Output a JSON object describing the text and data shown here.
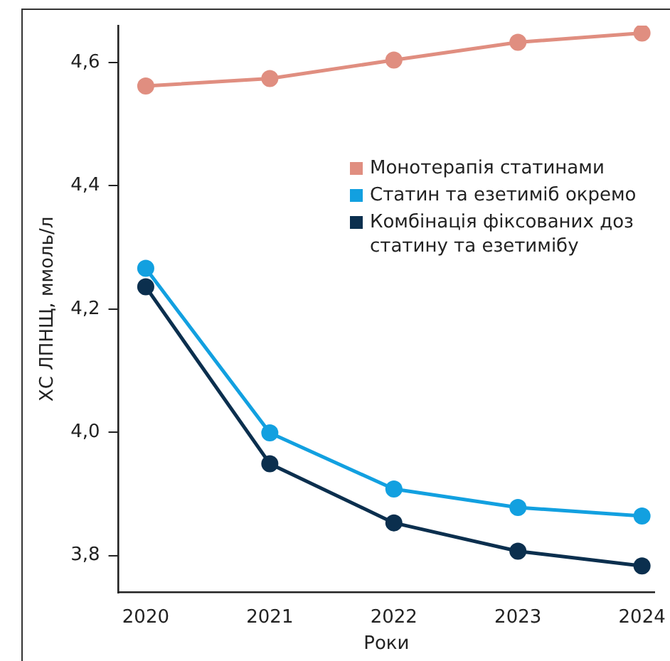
{
  "chart_data": {
    "type": "line",
    "xlabel": "Роки",
    "ylabel": "ХС ЛПНЩ, ммоль/л",
    "x": [
      2020,
      2021,
      2022,
      2023,
      2024
    ],
    "xlim": [
      2019.78,
      2024.1
    ],
    "xticks": [
      2020,
      2021,
      2022,
      2023,
      2024
    ],
    "ylim": [
      3.74,
      4.66
    ],
    "yticks": [
      {
        "value": 3.8,
        "label": "3,8"
      },
      {
        "value": 4.0,
        "label": "4,0"
      },
      {
        "value": 4.2,
        "label": "4,2"
      },
      {
        "value": 4.4,
        "label": "4,4"
      },
      {
        "value": 4.6,
        "label": "4,6"
      }
    ],
    "series": [
      {
        "name": "Монотерапія статинами",
        "color": "#e08e80",
        "values": [
          4.562,
          4.574,
          4.604,
          4.633,
          4.648
        ]
      },
      {
        "name": "Статин та езетиміб окремо",
        "color": "#12a0e0",
        "values": [
          4.266,
          3.999,
          3.908,
          3.878,
          3.864
        ]
      },
      {
        "name": "Комбінація фіксованих доз статину та езетимібу",
        "color": "#0b2f4e",
        "values": [
          4.236,
          3.949,
          3.853,
          3.807,
          3.783
        ]
      }
    ],
    "grid": false,
    "legend": "right",
    "marker": "circle",
    "line_style": "solid"
  }
}
